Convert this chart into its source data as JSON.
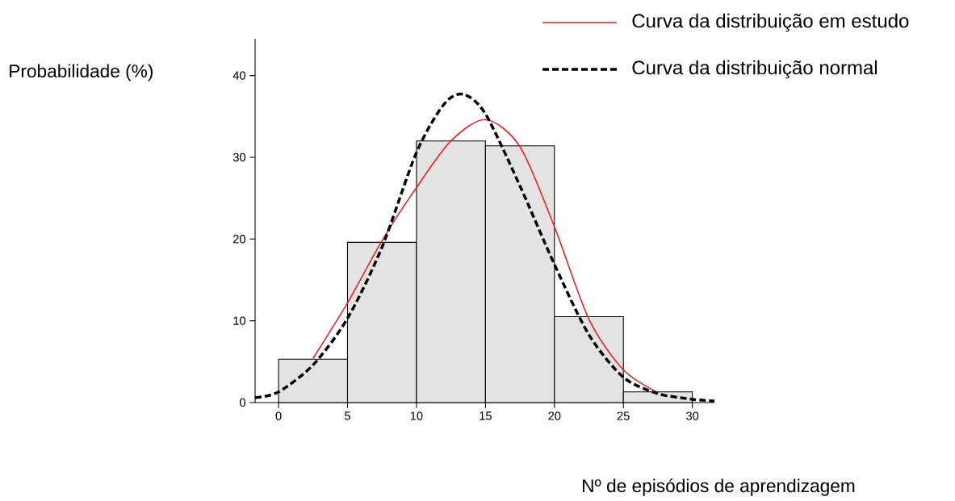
{
  "chart_data": {
    "type": "histogram",
    "xlabel": "Nº de episódios de aprendizagem",
    "ylabel": "Probabilidade (%)",
    "bins": [
      0,
      5,
      10,
      15,
      20,
      25,
      30
    ],
    "values": [
      5.3,
      19.6,
      32.0,
      31.4,
      10.5,
      1.3
    ],
    "color": "#e3e3e3",
    "series": [
      {
        "type": "line",
        "name": "Curva da distribuição em estudo",
        "color": "#ee2222",
        "line_style": "solid",
        "x": [
          2.5,
          5,
          7.5,
          10,
          12.5,
          15,
          17.5,
          20,
          22.5,
          25,
          27.5
        ],
        "values": [
          5.4,
          12.2,
          19.8,
          26.3,
          32.0,
          34.6,
          31.3,
          21.5,
          10.2,
          4.0,
          1.2
        ]
      },
      {
        "type": "line",
        "name": "Curva da distribuição normal",
        "color": "#000000",
        "line_style": "dashed",
        "x": [
          -1.7,
          0,
          2.5,
          5,
          7.5,
          10,
          12,
          13.4,
          15,
          17.5,
          20,
          22.5,
          25,
          27.5,
          30,
          31.6
        ],
        "values": [
          0.6,
          1.3,
          4.6,
          10.3,
          19.0,
          30.6,
          36.5,
          37.7,
          35.3,
          26.5,
          16.9,
          8.3,
          3.1,
          1.1,
          0.4,
          0.2
        ]
      }
    ],
    "xlim": [
      -1.7,
      31.6
    ],
    "ylim": [
      0,
      44.5
    ],
    "xticks": [
      0,
      5,
      10,
      15,
      20,
      25,
      30
    ],
    "yticks": [
      0,
      10,
      20,
      30,
      40
    ],
    "legend": "top right",
    "grid": false,
    "marker": "none"
  }
}
